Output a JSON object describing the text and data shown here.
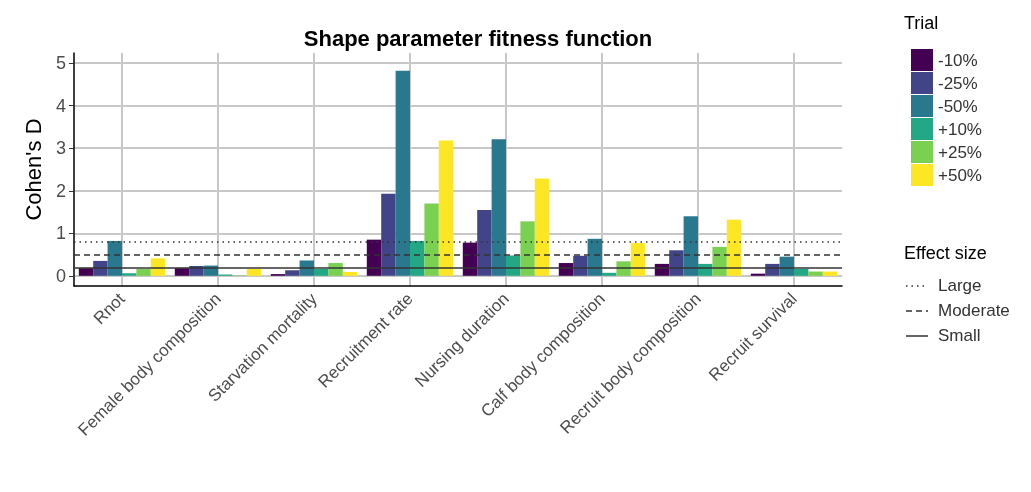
{
  "chart_data": {
    "type": "bar",
    "title": "Shape parameter fitness function",
    "ylabel": "Cohen's D",
    "legend_title": "Trial",
    "categories": [
      "Rnot",
      "Female body composition",
      "Starvation mortality",
      "Recruitment rate",
      "Nursing duration",
      "Calf body composition",
      "Recruit body composition",
      "Recruit survival"
    ],
    "series": [
      {
        "name": "-10%",
        "color": "#440154",
        "values": [
          0.18,
          0.18,
          0.04,
          0.85,
          0.78,
          0.3,
          0.28,
          0.05
        ]
      },
      {
        "name": "-25%",
        "color": "#414487",
        "values": [
          0.35,
          0.23,
          0.13,
          1.93,
          1.55,
          0.47,
          0.6,
          0.28
        ]
      },
      {
        "name": "-50%",
        "color": "#2a788e",
        "values": [
          0.82,
          0.24,
          0.36,
          4.82,
          3.21,
          0.87,
          1.4,
          0.45
        ]
      },
      {
        "name": "+10%",
        "color": "#22a884",
        "values": [
          0.06,
          0.03,
          0.16,
          0.82,
          0.48,
          0.07,
          0.28,
          0.16
        ]
      },
      {
        "name": "+25%",
        "color": "#7ad151",
        "values": [
          0.16,
          0.01,
          0.3,
          1.7,
          1.28,
          0.34,
          0.68,
          0.1
        ]
      },
      {
        "name": "+50%",
        "color": "#fde725",
        "values": [
          0.41,
          0.16,
          0.09,
          3.18,
          2.29,
          0.77,
          1.32,
          0.1
        ]
      }
    ],
    "ylim": [
      -0.24,
      5.24
    ],
    "yticks": [
      0,
      1,
      2,
      3,
      4,
      5
    ],
    "grid": true,
    "legend": "right",
    "ref_lines": [
      {
        "axis": "y",
        "value": 0.8,
        "label": "Large",
        "line_style": "dotted",
        "color": "#333333"
      },
      {
        "axis": "y",
        "value": 0.5,
        "label": "Moderate",
        "line_style": "dashed",
        "color": "#333333"
      },
      {
        "axis": "y",
        "value": 0.2,
        "label": "Small",
        "line_style": "solid",
        "color": "#333333"
      }
    ],
    "annotations": [
      "Effect size"
    ]
  }
}
